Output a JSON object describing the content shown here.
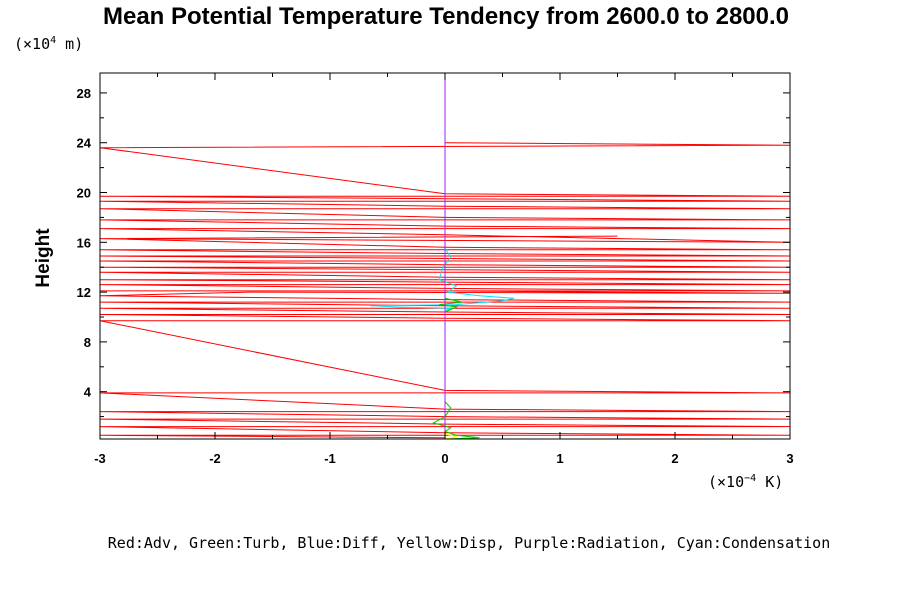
{
  "chart_data": {
    "type": "line",
    "title": "Mean Potential Temperature Tendency from 2600.0 to 2800.0",
    "ylabel": "Height",
    "y_unit_prefix": "(×10",
    "y_unit_exp": "4",
    "y_unit_suffix": " m)",
    "x_unit_prefix": "(×10",
    "x_unit_exp": "−4",
    "x_unit_suffix": " K)",
    "xlim": [
      -3,
      3
    ],
    "ylim": [
      0.2,
      29.6
    ],
    "x_ticks": [
      -3,
      -2,
      -1,
      0,
      1,
      2,
      3
    ],
    "x_tick_labels": [
      "-3",
      "-2",
      "-1",
      "0",
      "1",
      "2",
      "3"
    ],
    "y_ticks": [
      4,
      8,
      12,
      16,
      20,
      24,
      28
    ],
    "y_tick_labels": [
      "4",
      "8",
      "12",
      "16",
      "20",
      "24",
      "28"
    ],
    "legend": "Red:Adv, Green:Turb, Blue:Diff, Yellow:Disp, Purple:Radiation, Cyan:Condensation",
    "series": [
      {
        "name": "Adv",
        "color": "#ff0000",
        "note": "horizontal spikes spanning the axis at discrete heights",
        "spike_heights": [
          0.5,
          1.2,
          1.8,
          2.4,
          3.9,
          9.7,
          10.2,
          10.7,
          11.2,
          11.7,
          12.1,
          12.6,
          13.0,
          13.6,
          14.0,
          14.5,
          14.9,
          15.4,
          16.3,
          17.1,
          17.8,
          18.7,
          19.3,
          19.7,
          23.6
        ],
        "points": [
          [
            0,
            0.3
          ],
          [
            -3,
            0.5
          ],
          [
            3,
            0.5
          ],
          [
            0,
            0.7
          ],
          [
            -3,
            1.2
          ],
          [
            3,
            1.2
          ],
          [
            0,
            1.4
          ],
          [
            -3,
            1.8
          ],
          [
            3,
            1.8
          ],
          [
            0,
            2.0
          ],
          [
            -3,
            2.4
          ],
          [
            3,
            2.4
          ],
          [
            0,
            2.6
          ],
          [
            -3,
            3.9
          ],
          [
            3,
            3.9
          ],
          [
            0,
            4.1
          ],
          [
            -3,
            9.7
          ],
          [
            3,
            9.7
          ],
          [
            0,
            9.9
          ],
          [
            -3,
            10.2
          ],
          [
            3,
            10.2
          ],
          [
            0,
            10.4
          ],
          [
            -3,
            10.7
          ],
          [
            3,
            10.7
          ],
          [
            0,
            10.9
          ],
          [
            -3,
            11.2
          ],
          [
            3,
            11.2
          ],
          [
            0,
            11.4
          ],
          [
            -3,
            11.7
          ],
          [
            -1.7,
            12.0
          ],
          [
            3,
            11.9
          ],
          [
            0,
            12.1
          ],
          [
            -3,
            12.1
          ],
          [
            3,
            12.1
          ],
          [
            0,
            12.3
          ],
          [
            -3,
            12.6
          ],
          [
            3,
            12.6
          ],
          [
            0,
            12.8
          ],
          [
            -3,
            13.0
          ],
          [
            3,
            13.0
          ],
          [
            0,
            13.2
          ],
          [
            -3,
            13.6
          ],
          [
            3,
            13.6
          ],
          [
            0,
            13.8
          ],
          [
            -3,
            14.0
          ],
          [
            3,
            14.0
          ],
          [
            0,
            14.2
          ],
          [
            -3,
            14.5
          ],
          [
            3,
            14.5
          ],
          [
            0,
            14.7
          ],
          [
            -3,
            14.9
          ],
          [
            3,
            14.9
          ],
          [
            0,
            15.1
          ],
          [
            -3,
            15.4
          ],
          [
            3,
            15.4
          ],
          [
            0,
            15.6
          ],
          [
            -3,
            16.3
          ],
          [
            1.5,
            16.5
          ],
          [
            -3,
            16.3
          ],
          [
            3,
            16.0
          ],
          [
            0,
            16.6
          ],
          [
            -3,
            17.1
          ],
          [
            3,
            17.1
          ],
          [
            0,
            17.3
          ],
          [
            -3,
            17.8
          ],
          [
            3,
            17.8
          ],
          [
            0,
            18.0
          ],
          [
            -3,
            18.7
          ],
          [
            3,
            18.7
          ],
          [
            0,
            18.9
          ],
          [
            -3,
            19.3
          ],
          [
            3,
            19.3
          ],
          [
            0,
            19.5
          ],
          [
            -3,
            19.7
          ],
          [
            3,
            19.7
          ],
          [
            0,
            19.9
          ],
          [
            -3,
            23.6
          ],
          [
            3,
            23.8
          ],
          [
            0,
            24.0
          ]
        ]
      },
      {
        "name": "Condensation",
        "color": "#00e5ff",
        "points": [
          [
            0,
            0.2
          ],
          [
            0,
            10.5
          ],
          [
            0.05,
            10.7
          ],
          [
            -0.4,
            10.8
          ],
          [
            -0.65,
            10.9
          ],
          [
            0.1,
            11.0
          ],
          [
            0.5,
            11.3
          ],
          [
            0.6,
            11.5
          ],
          [
            0.3,
            11.7
          ],
          [
            0.02,
            12.0
          ],
          [
            0.1,
            12.5
          ],
          [
            -0.05,
            13.0
          ],
          [
            -0.02,
            14.0
          ],
          [
            0.05,
            14.8
          ],
          [
            0,
            15.5
          ],
          [
            0,
            29.6
          ]
        ]
      },
      {
        "name": "Turb",
        "color": "#00cc00",
        "points": [
          [
            0,
            0.2
          ],
          [
            0.3,
            0.3
          ],
          [
            0.1,
            0.5
          ],
          [
            0,
            0.8
          ],
          [
            0.05,
            1.1
          ],
          [
            -0.1,
            1.5
          ],
          [
            0,
            2.0
          ],
          [
            0.05,
            2.7
          ],
          [
            0,
            3.2
          ],
          [
            0,
            10.4
          ],
          [
            0.1,
            10.8
          ],
          [
            -0.05,
            11.0
          ],
          [
            0.15,
            11.2
          ],
          [
            0,
            11.5
          ],
          [
            0,
            29.6
          ]
        ]
      },
      {
        "name": "Diff",
        "color": "#0000ff",
        "points": [
          [
            0,
            0.2
          ],
          [
            0,
            29.6
          ]
        ]
      },
      {
        "name": "Disp",
        "color": "#ffff00",
        "points": [
          [
            0,
            0.2
          ],
          [
            0.1,
            0.4
          ],
          [
            0,
            0.6
          ],
          [
            0,
            29.6
          ]
        ]
      },
      {
        "name": "Radiation",
        "color": "#a020f0",
        "points": [
          [
            0,
            0.2
          ],
          [
            0,
            29.6
          ]
        ]
      }
    ]
  }
}
